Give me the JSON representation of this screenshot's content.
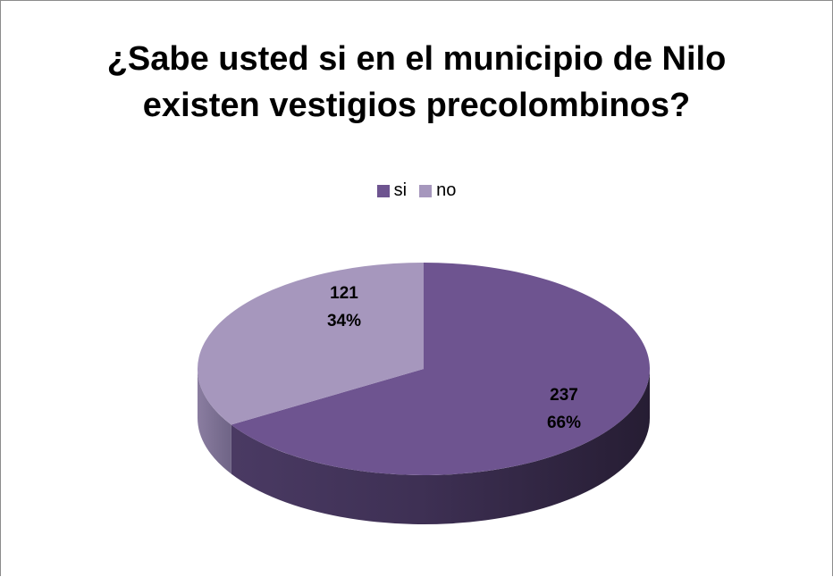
{
  "chart_data": {
    "type": "pie",
    "title_lines": [
      "¿Sabe usted si en el municipio de Nilo",
      "existen vestigios precolombinos?"
    ],
    "categories": [
      "si",
      "no"
    ],
    "values": [
      237,
      121
    ],
    "percent_labels": [
      "66%",
      "34%"
    ],
    "colors": [
      "#6e5490",
      "#a697bd"
    ],
    "three_d": true,
    "legend_position": "top"
  }
}
